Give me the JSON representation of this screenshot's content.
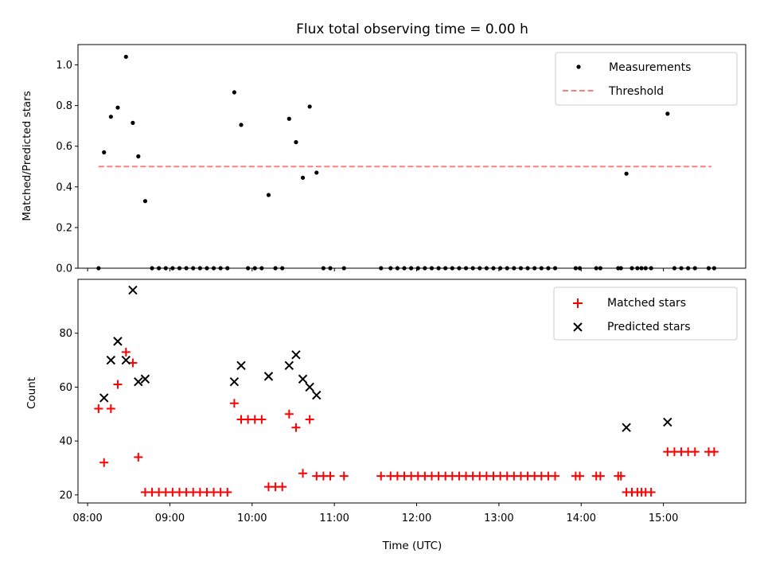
{
  "chart_data": [
    {
      "type": "scatter",
      "title": "Flux total observing time = 0.00 h",
      "xlabel": "",
      "ylabel": "Matched/Predicted stars",
      "xlim": [
        "07:53",
        "16:00"
      ],
      "ylim": [
        0,
        1.1
      ],
      "yticks": [
        0.0,
        0.2,
        0.4,
        0.6,
        0.8,
        1.0
      ],
      "ytick_labels": [
        "0.0",
        "0.2",
        "0.4",
        "0.6",
        "0.8",
        "1.0"
      ],
      "legend_position": "upper right",
      "grid": false,
      "threshold": {
        "name": "Threshold",
        "y": 0.5,
        "x_start": "08:08",
        "x_end": "15:35",
        "color": "#ff7f7f",
        "style": "dashed"
      },
      "series": [
        {
          "name": "Measurements",
          "color": "#000000",
          "marker": "dot",
          "points": [
            [
              "08:08",
              0.0
            ],
            [
              "08:12",
              0.57
            ],
            [
              "08:17",
              0.745
            ],
            [
              "08:22",
              0.79
            ],
            [
              "08:28",
              1.04
            ],
            [
              "08:33",
              0.715
            ],
            [
              "08:37",
              0.55
            ],
            [
              "08:42",
              0.33
            ],
            [
              "08:47",
              0.0
            ],
            [
              "08:52",
              0.0
            ],
            [
              "08:57",
              0.0
            ],
            [
              "09:02",
              0.0
            ],
            [
              "09:07",
              0.0
            ],
            [
              "09:12",
              0.0
            ],
            [
              "09:17",
              0.0
            ],
            [
              "09:22",
              0.0
            ],
            [
              "09:27",
              0.0
            ],
            [
              "09:32",
              0.0
            ],
            [
              "09:37",
              0.0
            ],
            [
              "09:42",
              0.0
            ],
            [
              "09:47",
              0.865
            ],
            [
              "09:52",
              0.705
            ],
            [
              "09:57",
              0.0
            ],
            [
              "10:02",
              0.0
            ],
            [
              "10:07",
              0.0
            ],
            [
              "10:12",
              0.36
            ],
            [
              "10:17",
              0.0
            ],
            [
              "10:22",
              0.0
            ],
            [
              "10:27",
              0.735
            ],
            [
              "10:32",
              0.62
            ],
            [
              "10:37",
              0.445
            ],
            [
              "10:42",
              0.795
            ],
            [
              "10:47",
              0.47
            ],
            [
              "10:52",
              0.0
            ],
            [
              "10:57",
              0.0
            ],
            [
              "11:07",
              0.0
            ],
            [
              "11:34",
              0.0
            ],
            [
              "11:41",
              0.0
            ],
            [
              "11:46",
              0.0
            ],
            [
              "11:51",
              0.0
            ],
            [
              "11:56",
              0.0
            ],
            [
              "12:01",
              0.0
            ],
            [
              "12:06",
              0.0
            ],
            [
              "12:11",
              0.0
            ],
            [
              "12:16",
              0.0
            ],
            [
              "12:21",
              0.0
            ],
            [
              "12:26",
              0.0
            ],
            [
              "12:31",
              0.0
            ],
            [
              "12:36",
              0.0
            ],
            [
              "12:41",
              0.0
            ],
            [
              "12:46",
              0.0
            ],
            [
              "12:51",
              0.0
            ],
            [
              "12:56",
              0.0
            ],
            [
              "13:01",
              0.0
            ],
            [
              "13:06",
              0.0
            ],
            [
              "13:11",
              0.0
            ],
            [
              "13:16",
              0.0
            ],
            [
              "13:21",
              0.0
            ],
            [
              "13:26",
              0.0
            ],
            [
              "13:31",
              0.0
            ],
            [
              "13:36",
              0.0
            ],
            [
              "13:41",
              0.0
            ],
            [
              "13:56",
              0.0
            ],
            [
              "13:59",
              0.0
            ],
            [
              "14:11",
              0.0
            ],
            [
              "14:14",
              0.0
            ],
            [
              "14:27",
              0.0
            ],
            [
              "14:29",
              0.0
            ],
            [
              "14:33",
              0.465
            ],
            [
              "14:37",
              0.0
            ],
            [
              "14:41",
              0.0
            ],
            [
              "14:44",
              0.0
            ],
            [
              "14:47",
              0.0
            ],
            [
              "14:51",
              0.0
            ],
            [
              "15:03",
              0.76
            ],
            [
              "15:08",
              0.0
            ],
            [
              "15:13",
              0.0
            ],
            [
              "15:18",
              0.0
            ],
            [
              "15:23",
              0.0
            ],
            [
              "15:33",
              0.0
            ],
            [
              "15:37",
              0.0
            ]
          ]
        }
      ]
    },
    {
      "type": "scatter",
      "title": "",
      "xlabel": "Time (UTC)",
      "ylabel": "Count",
      "xlim": [
        "07:53",
        "16:00"
      ],
      "ylim": [
        17,
        100
      ],
      "xticks": [
        "08:00",
        "09:00",
        "10:00",
        "11:00",
        "12:00",
        "13:00",
        "14:00",
        "15:00"
      ],
      "xtick_labels": [
        "08:00",
        "09:00",
        "10:00",
        "11:00",
        "12:00",
        "13:00",
        "14:00",
        "15:00"
      ],
      "yticks": [
        20,
        40,
        60,
        80
      ],
      "ytick_labels": [
        "20",
        "40",
        "60",
        "80"
      ],
      "legend_position": "upper right",
      "grid": false,
      "series": [
        {
          "name": "Matched stars",
          "color": "#ff0000",
          "marker": "plus",
          "points": [
            [
              "08:08",
              52
            ],
            [
              "08:12",
              32
            ],
            [
              "08:17",
              52
            ],
            [
              "08:22",
              61
            ],
            [
              "08:28",
              73
            ],
            [
              "08:33",
              69
            ],
            [
              "08:37",
              34
            ],
            [
              "08:42",
              21
            ],
            [
              "08:47",
              21
            ],
            [
              "08:52",
              21
            ],
            [
              "08:57",
              21
            ],
            [
              "09:02",
              21
            ],
            [
              "09:07",
              21
            ],
            [
              "09:12",
              21
            ],
            [
              "09:17",
              21
            ],
            [
              "09:22",
              21
            ],
            [
              "09:27",
              21
            ],
            [
              "09:32",
              21
            ],
            [
              "09:37",
              21
            ],
            [
              "09:42",
              21
            ],
            [
              "09:47",
              54
            ],
            [
              "09:52",
              48
            ],
            [
              "09:57",
              48
            ],
            [
              "10:02",
              48
            ],
            [
              "10:07",
              48
            ],
            [
              "10:12",
              23
            ],
            [
              "10:17",
              23
            ],
            [
              "10:22",
              23
            ],
            [
              "10:27",
              50
            ],
            [
              "10:32",
              45
            ],
            [
              "10:37",
              28
            ],
            [
              "10:42",
              48
            ],
            [
              "10:47",
              27
            ],
            [
              "10:52",
              27
            ],
            [
              "10:57",
              27
            ],
            [
              "11:07",
              27
            ],
            [
              "11:34",
              27
            ],
            [
              "11:41",
              27
            ],
            [
              "11:46",
              27
            ],
            [
              "11:51",
              27
            ],
            [
              "11:56",
              27
            ],
            [
              "12:01",
              27
            ],
            [
              "12:06",
              27
            ],
            [
              "12:11",
              27
            ],
            [
              "12:16",
              27
            ],
            [
              "12:21",
              27
            ],
            [
              "12:26",
              27
            ],
            [
              "12:31",
              27
            ],
            [
              "12:36",
              27
            ],
            [
              "12:41",
              27
            ],
            [
              "12:46",
              27
            ],
            [
              "12:51",
              27
            ],
            [
              "12:56",
              27
            ],
            [
              "13:01",
              27
            ],
            [
              "13:06",
              27
            ],
            [
              "13:11",
              27
            ],
            [
              "13:16",
              27
            ],
            [
              "13:21",
              27
            ],
            [
              "13:26",
              27
            ],
            [
              "13:31",
              27
            ],
            [
              "13:36",
              27
            ],
            [
              "13:41",
              27
            ],
            [
              "13:56",
              27
            ],
            [
              "13:59",
              27
            ],
            [
              "14:11",
              27
            ],
            [
              "14:14",
              27
            ],
            [
              "14:27",
              27
            ],
            [
              "14:29",
              27
            ],
            [
              "14:33",
              21
            ],
            [
              "14:37",
              21
            ],
            [
              "14:41",
              21
            ],
            [
              "14:44",
              21
            ],
            [
              "14:47",
              21
            ],
            [
              "14:51",
              21
            ],
            [
              "15:03",
              36
            ],
            [
              "15:08",
              36
            ],
            [
              "15:13",
              36
            ],
            [
              "15:18",
              36
            ],
            [
              "15:23",
              36
            ],
            [
              "15:33",
              36
            ],
            [
              "15:37",
              36
            ]
          ]
        },
        {
          "name": "Predicted stars",
          "color": "#000000",
          "marker": "x",
          "points": [
            [
              "08:12",
              56
            ],
            [
              "08:17",
              70
            ],
            [
              "08:22",
              77
            ],
            [
              "08:28",
              70
            ],
            [
              "08:33",
              96
            ],
            [
              "08:37",
              62
            ],
            [
              "08:42",
              63
            ],
            [
              "09:47",
              62
            ],
            [
              "09:52",
              68
            ],
            [
              "10:12",
              64
            ],
            [
              "10:27",
              68
            ],
            [
              "10:32",
              72
            ],
            [
              "10:37",
              63
            ],
            [
              "10:42",
              60
            ],
            [
              "10:47",
              57
            ],
            [
              "14:33",
              45
            ],
            [
              "15:03",
              47
            ]
          ]
        }
      ]
    }
  ]
}
